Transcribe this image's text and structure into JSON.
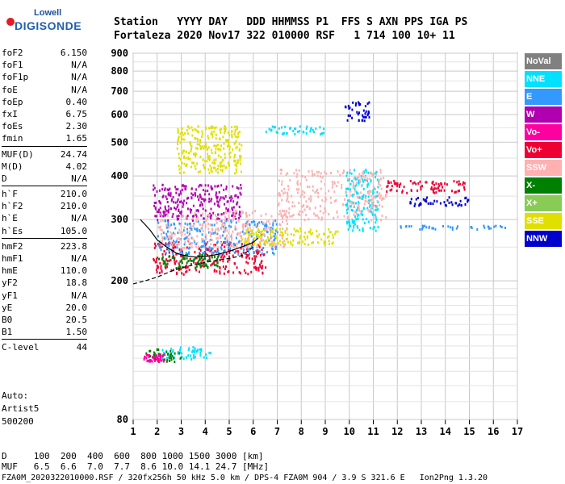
{
  "logo": {
    "line1": "Lowell",
    "line2": "DIGISONDE"
  },
  "header": {
    "line1": "Station   YYYY DAY   DDD HHMMSS P1  FFS S AXN PPS IGA PS",
    "line2": "Fortaleza 2020 Nov17 322 010000 RSF   1 714 100 10+ 11"
  },
  "params": [
    [
      {
        "k": "foF2",
        "v": "6.150"
      },
      {
        "k": "foF1",
        "v": "N/A"
      },
      {
        "k": "foF1p",
        "v": "N/A"
      },
      {
        "k": "foE",
        "v": "N/A"
      },
      {
        "k": "foEp",
        "v": "0.40"
      },
      {
        "k": "fxI",
        "v": "6.75"
      },
      {
        "k": "foEs",
        "v": "2.30"
      },
      {
        "k": "fmin",
        "v": "1.65"
      }
    ],
    [
      {
        "k": "MUF(D)",
        "v": "24.74"
      },
      {
        "k": "M(D)",
        "v": "4.02"
      },
      {
        "k": "D",
        "v": "N/A"
      }
    ],
    [
      {
        "k": "h`F",
        "v": "210.0"
      },
      {
        "k": "h`F2",
        "v": "210.0"
      },
      {
        "k": "h`E",
        "v": "N/A"
      },
      {
        "k": "h`Es",
        "v": "105.0"
      }
    ],
    [
      {
        "k": "hmF2",
        "v": "223.8"
      },
      {
        "k": "hmF1",
        "v": "N/A"
      },
      {
        "k": "hmE",
        "v": "110.0"
      },
      {
        "k": "yF2",
        "v": "18.8"
      },
      {
        "k": "yF1",
        "v": "N/A"
      },
      {
        "k": "yE",
        "v": "20.0"
      },
      {
        "k": "B0",
        "v": "20.5"
      },
      {
        "k": "B1",
        "v": "1.50"
      }
    ],
    [
      {
        "k": "C-level",
        "v": "44"
      }
    ]
  ],
  "auto": {
    "line1": "Auto:",
    "line2": "Artist5",
    "line3": "500200"
  },
  "legend": [
    {
      "label": "NoVal",
      "color": "#808080"
    },
    {
      "label": "NNE",
      "color": "#00e0ff"
    },
    {
      "label": "E",
      "color": "#3399ff"
    },
    {
      "label": "W",
      "color": "#b000b0"
    },
    {
      "label": "Vo-",
      "color": "#ff00a0"
    },
    {
      "label": "Vo+",
      "color": "#ee0033"
    },
    {
      "label": "SSW",
      "color": "#ffb0b0"
    },
    {
      "label": "X-",
      "color": "#008000"
    },
    {
      "label": "X+",
      "color": "#88cc55"
    },
    {
      "label": "SSE",
      "color": "#e0e000"
    },
    {
      "label": "NNW",
      "color": "#0000cc"
    }
  ],
  "footer": {
    "line1": "D     100  200  400  600  800 1000 1500 3000 [km]",
    "line2": "MUF   6.5  6.6  7.0  7.7  8.6 10.0 14.1 24.7 [MHz]",
    "line3": "FZA0M_2020322010000.RSF / 320fx256h 50 kHz 5.0 km / DPS-4 FZA0M 904 / 3.9 S 321.6 E   Ion2Png 1.3.20"
  },
  "chart_data": {
    "type": "scatter",
    "x_ticks": [
      1,
      2,
      3,
      4,
      5,
      6,
      7,
      8,
      9,
      10,
      11,
      12,
      13,
      14,
      15,
      16,
      17
    ],
    "y_ticks": [
      80,
      200,
      300,
      400,
      500,
      600,
      700,
      800,
      900
    ],
    "xlim": [
      1,
      17
    ],
    "y_scale": "log",
    "ylim": [
      80,
      900
    ],
    "grid": true,
    "legend_position": "right",
    "profile_curve": {
      "x": [
        1.0,
        1.5,
        2.0,
        2.5,
        3.0,
        3.5,
        4.0,
        4.5,
        5.0,
        5.5,
        6.0
      ],
      "y": [
        196,
        200,
        205,
        212,
        218,
        222,
        226,
        229,
        232,
        236,
        250
      ]
    },
    "trace_curve": {
      "x": [
        1.3,
        1.7,
        2.0,
        2.4,
        2.8,
        3.2,
        3.6,
        4.0,
        4.5,
        5.0,
        5.5,
        6.0,
        6.2
      ],
      "y": [
        300,
        280,
        262,
        250,
        240,
        236,
        234,
        235,
        238,
        243,
        250,
        258,
        265
      ]
    },
    "echo_clusters": [
      {
        "series": "NNE",
        "x_range": [
          2.0,
          4.2
        ],
        "y_range": [
          120,
          130
        ]
      },
      {
        "series": "X-",
        "x_range": [
          1.5,
          3.0
        ],
        "y_range": [
          118,
          128
        ]
      },
      {
        "series": "Vo-",
        "x_range": [
          1.4,
          2.3
        ],
        "y_range": [
          118,
          124
        ]
      },
      {
        "series": "SSE",
        "x_range": [
          2.8,
          5.5
        ],
        "y_range": [
          410,
          560
        ]
      },
      {
        "series": "Vo+",
        "x_range": [
          1.8,
          6.5
        ],
        "y_range": [
          210,
          260
        ]
      },
      {
        "series": "X-",
        "x_range": [
          2.0,
          4.5
        ],
        "y_range": [
          218,
          240
        ]
      },
      {
        "series": "W",
        "x_range": [
          1.8,
          5.5
        ],
        "y_range": [
          300,
          380
        ]
      },
      {
        "series": "E",
        "x_range": [
          2.0,
          7.0
        ],
        "y_range": [
          240,
          300
        ]
      },
      {
        "series": "SSW",
        "x_range": [
          2.0,
          7.5
        ],
        "y_range": [
          250,
          320
        ]
      },
      {
        "series": "SSE",
        "x_range": [
          5.5,
          9.5
        ],
        "y_range": [
          255,
          285
        ]
      },
      {
        "series": "NNE",
        "x_range": [
          6.5,
          9.0
        ],
        "y_range": [
          530,
          560
        ]
      },
      {
        "series": "NNW",
        "x_range": [
          9.8,
          10.8
        ],
        "y_range": [
          580,
          660
        ]
      },
      {
        "series": "NNE",
        "x_range": [
          9.8,
          11.2
        ],
        "y_range": [
          280,
          420
        ]
      },
      {
        "series": "Vo+",
        "x_range": [
          11.5,
          14.8
        ],
        "y_range": [
          360,
          390
        ]
      },
      {
        "series": "NNW",
        "x_range": [
          12.5,
          15.0
        ],
        "y_range": [
          330,
          350
        ]
      },
      {
        "series": "E",
        "x_range": [
          12.0,
          16.5
        ],
        "y_range": [
          283,
          290
        ]
      },
      {
        "series": "SSW",
        "x_range": [
          7.0,
          11.5
        ],
        "y_range": [
          300,
          420
        ]
      }
    ]
  }
}
